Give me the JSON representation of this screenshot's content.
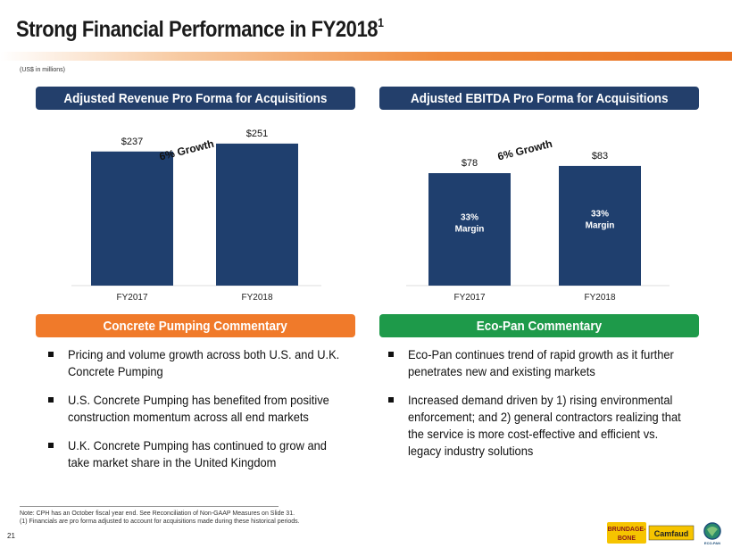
{
  "slide": {
    "title": "Strong Financial Performance in FY2018",
    "title_sup": "1",
    "units_note": "(US$ in millions)",
    "page_number": "21"
  },
  "revenue": {
    "header": "Adjusted Revenue Pro Forma for Acquisitions",
    "growth_label": "6% Growth"
  },
  "ebitda": {
    "header": "Adjusted EBITDA Pro Forma for Acquisitions",
    "growth_label": "6% Growth",
    "margin_label": "Margin"
  },
  "chart_data": [
    {
      "type": "bar",
      "title": "Adjusted Revenue Pro Forma for Acquisitions",
      "categories": [
        "FY2017",
        "FY2018"
      ],
      "values": [
        237,
        251
      ],
      "value_labels": [
        "$237",
        "$251"
      ],
      "annotation": "6% Growth",
      "ylim": [
        0,
        265
      ]
    },
    {
      "type": "bar",
      "title": "Adjusted EBITDA Pro Forma for Acquisitions",
      "categories": [
        "FY2017",
        "FY2018"
      ],
      "values": [
        78,
        83
      ],
      "value_labels": [
        "$78",
        "$83"
      ],
      "in_bar_labels": [
        "33%",
        "33%"
      ],
      "annotation": "6% Growth",
      "ylim": [
        0,
        104
      ]
    }
  ],
  "concrete": {
    "header": "Concrete Pumping Commentary",
    "bullets": [
      "Pricing and volume growth across both U.S. and U.K. Concrete Pumping",
      "U.S. Concrete Pumping has benefited from positive construction momentum across all end markets",
      "U.K. Concrete Pumping has continued to grow and take market share in the United Kingdom"
    ]
  },
  "ecopan": {
    "header": "Eco-Pan Commentary",
    "bullets": [
      "Eco-Pan continues trend of rapid growth as it further penetrates new and existing markets",
      "Increased demand driven by 1) rising environmental enforcement; and 2) general contractors realizing that the service is more cost-effective and efficient vs. legacy industry solutions"
    ]
  },
  "footnotes": {
    "note": "Note: CPH has an October fiscal year end. See Reconciliation of Non-GAAP Measures on Slide 31.",
    "note1": "(1) Financials are pro forma adjusted to account for acquisitions made during these historical periods."
  },
  "logos": {
    "brundage_line1": "BRUNDAGE-",
    "brundage_line2": "BONE",
    "camfaud": "Camfaud",
    "ecopan": "ECO-PAN"
  },
  "colors": {
    "navy": "#233f6b",
    "bar": "#1f3f6e",
    "orange": "#f07a2a",
    "green": "#1e9a4a"
  }
}
